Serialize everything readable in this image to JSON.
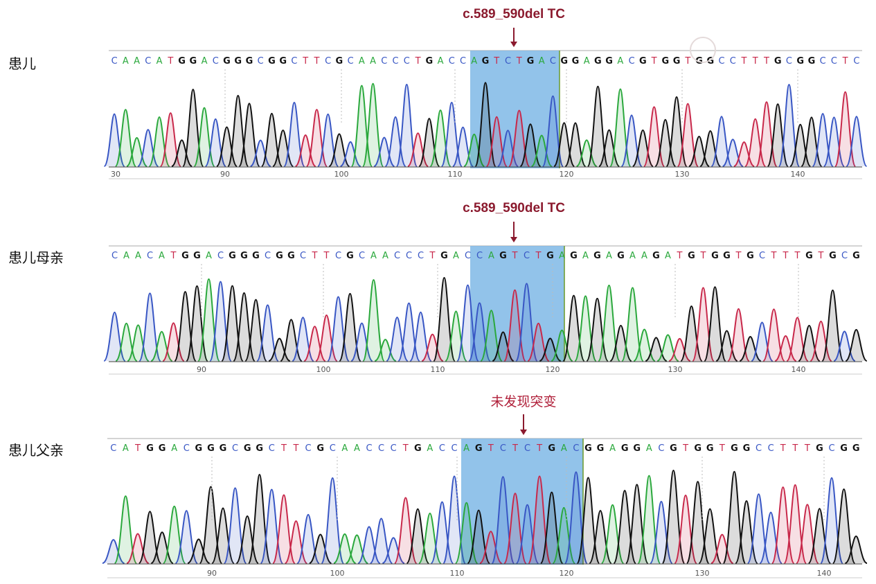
{
  "colors": {
    "A": "#2aa83c",
    "C": "#3856c4",
    "G": "#111111",
    "T": "#c8284a",
    "highlight": "#7fb8e6",
    "annotation": "#8b1a2e"
  },
  "rows": [
    {
      "label": "患儿",
      "annotation": "c.589_590del TC",
      "before": "CAACATGGACGGGCGGCTTCGCAACCCTGACC",
      "highlight": "AGTCTGAC",
      "after": "GGAGGACGTGGTGGCCTTTGCGGCCTC",
      "ticks": [
        "90",
        "100",
        "110",
        "120",
        "130",
        "140"
      ],
      "partial_tick": "30"
    },
    {
      "label": "患儿母亲",
      "annotation": "c.589_590del TC",
      "before": "CAACATGGACGGGCGGCTTCGCAACCCTGAC",
      "highlight": "CAGTCTGA",
      "after": "GAGAGAAGATGTGGTGCTTTGTGCG",
      "ticks": [
        "90",
        "100",
        "110",
        "120",
        "130",
        "140"
      ]
    },
    {
      "label": "患儿父亲",
      "annotation": "未发现突变",
      "before": "CATGGACGGGCGGCTTCGCAACCCTGACC",
      "highlight": "AGTCTCTGAC",
      "after": "GGAGGACGTGGTGGCCTTTGCGG",
      "ticks": [
        "90",
        "100",
        "110",
        "120",
        "130",
        "140"
      ]
    }
  ]
}
